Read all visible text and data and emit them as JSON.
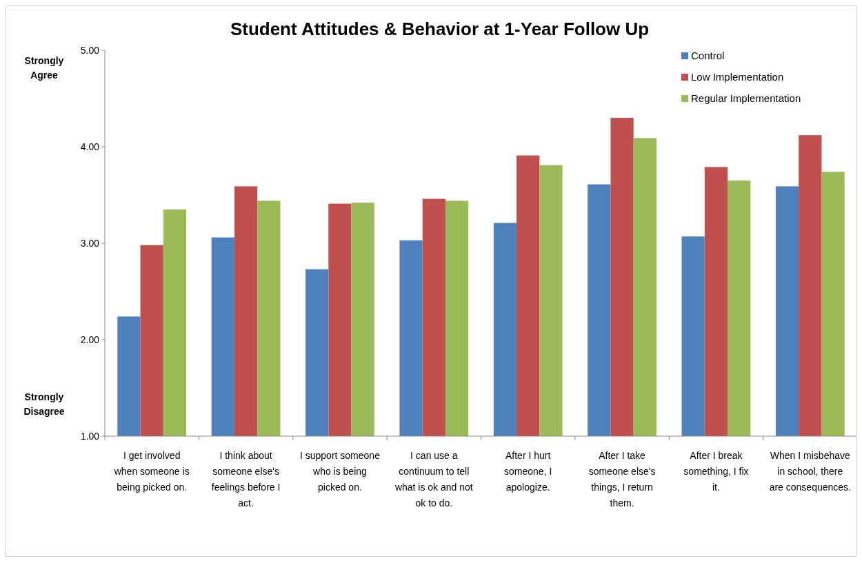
{
  "chart_data": {
    "type": "bar",
    "title": "Student Attitudes & Behavior at 1-Year Follow Up",
    "categories": [
      "I get involved when someone is being picked on.",
      "I think about someone else's feelings before I act.",
      "I support someone who is being picked on.",
      "I can use a continuum to tell what is ok and not ok to do.",
      "After I hurt someone, I apologize.",
      "After I take someone else's things, I return them.",
      "After I break something, I fix it.",
      "When I misbehave in school, there are consequences."
    ],
    "series": [
      {
        "name": "Control",
        "color": "#4f81bd",
        "values": [
          2.24,
          3.06,
          2.73,
          3.03,
          3.21,
          3.61,
          3.07,
          3.59
        ]
      },
      {
        "name": "Low Implementation",
        "color": "#c0504d",
        "values": [
          2.98,
          3.59,
          3.41,
          3.46,
          3.91,
          4.3,
          3.79,
          4.12
        ]
      },
      {
        "name": "Regular Implementation",
        "color": "#9bbb59",
        "values": [
          3.35,
          3.44,
          3.42,
          3.44,
          3.81,
          4.09,
          3.65,
          3.74
        ]
      }
    ],
    "ylim": [
      1,
      5
    ],
    "yticks": [
      {
        "value": 1,
        "label": "1.00"
      },
      {
        "value": 2,
        "label": "2.00"
      },
      {
        "value": 3,
        "label": "3.00"
      },
      {
        "value": 4,
        "label": "4.00"
      },
      {
        "value": 5,
        "label": "5.00"
      }
    ],
    "annotations": [
      "Strongly Agree",
      "Strongly Disagree"
    ],
    "legend": "top right",
    "grid": false
  }
}
